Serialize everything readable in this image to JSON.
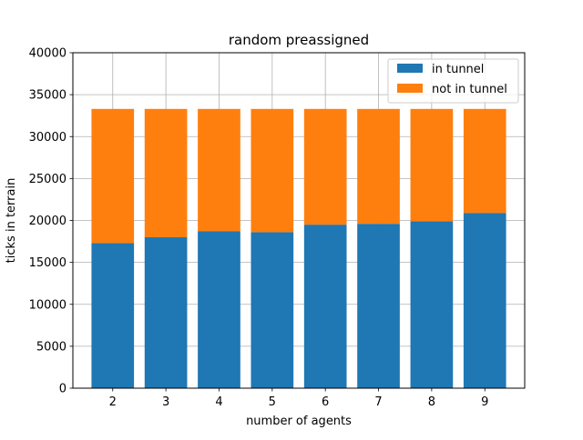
{
  "chart_data": {
    "type": "bar",
    "stacked": true,
    "title": "random preassigned",
    "xlabel": "number of agents",
    "ylabel": "ticks in terrain",
    "categories": [
      "2",
      "3",
      "4",
      "5",
      "6",
      "7",
      "8",
      "9"
    ],
    "series": [
      {
        "name": "in tunnel",
        "color": "#1f77b4",
        "values": [
          17300,
          18000,
          18700,
          18600,
          19500,
          19600,
          19900,
          20900
        ]
      },
      {
        "name": "not in tunnel",
        "color": "#ff7f0e",
        "values": [
          16000,
          15300,
          14600,
          14700,
          13800,
          13700,
          13400,
          12400
        ]
      }
    ],
    "ylim": [
      0,
      40000
    ],
    "yticks": [
      0,
      5000,
      10000,
      15000,
      20000,
      25000,
      30000,
      35000,
      40000
    ],
    "grid": true,
    "legend_position": "top-right"
  }
}
